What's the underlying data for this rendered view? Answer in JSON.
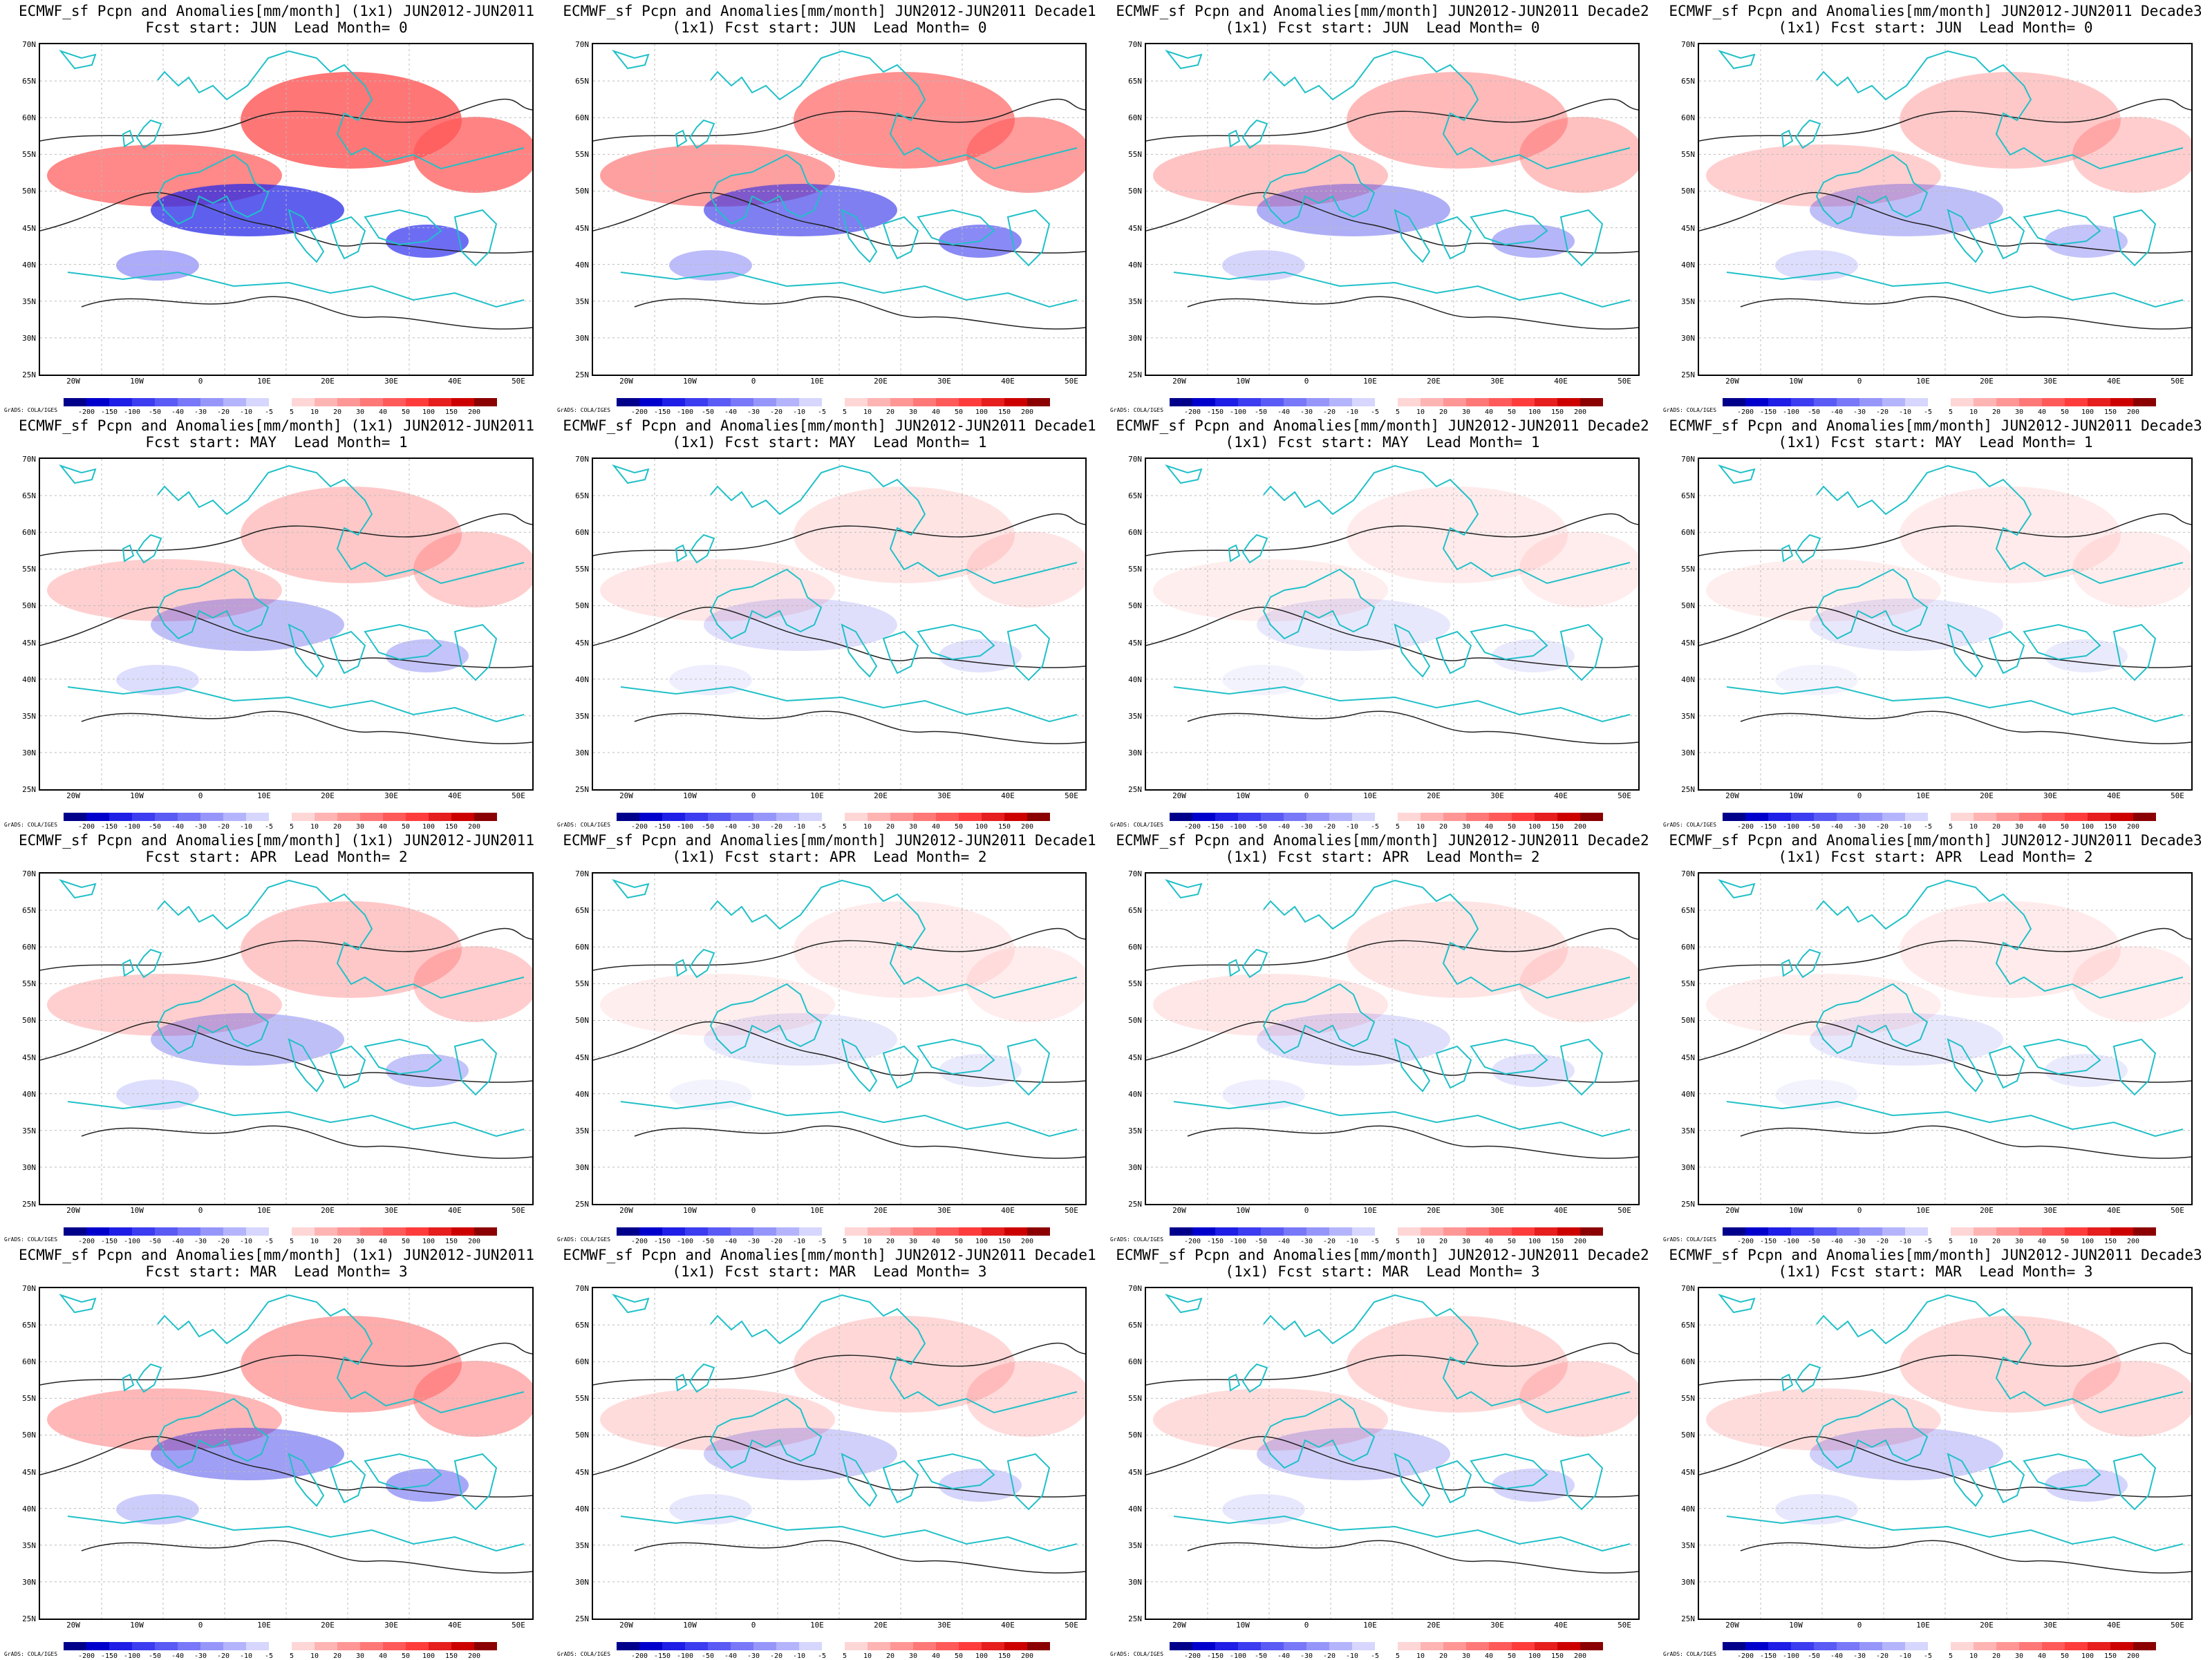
{
  "panels": [
    {
      "title": "ECMWF_sf Pcpn and Anomalies[mm/month] (1x1) JUN2012-JUN2011",
      "subtitle": "Fcst start: JUN  Lead Month= 0",
      "strength": 1.0
    },
    {
      "title": "ECMWF_sf Pcpn and Anomalies[mm/month] JUN2012-JUN2011 Decade1",
      "subtitle": "(1x1) Fcst start: JUN  Lead Month= 0",
      "strength": 0.8
    },
    {
      "title": "ECMWF_sf Pcpn and Anomalies[mm/month] JUN2012-JUN2011 Decade2",
      "subtitle": "(1x1) Fcst start: JUN  Lead Month= 0",
      "strength": 0.5
    },
    {
      "title": "ECMWF_sf Pcpn and Anomalies[mm/month] JUN2012-JUN2011 Decade3",
      "subtitle": "(1x1) Fcst start: JUN  Lead Month= 0",
      "strength": 0.4
    },
    {
      "title": "ECMWF_sf Pcpn and Anomalies[mm/month] (1x1) JUN2012-JUN2011",
      "subtitle": "Fcst start: MAY  Lead Month= 1",
      "strength": 0.4
    },
    {
      "title": "ECMWF_sf Pcpn and Anomalies[mm/month] JUN2012-JUN2011 Decade1",
      "subtitle": "(1x1) Fcst start: MAY  Lead Month= 1",
      "strength": 0.2
    },
    {
      "title": "ECMWF_sf Pcpn and Anomalies[mm/month] JUN2012-JUN2011 Decade2",
      "subtitle": "(1x1) Fcst start: MAY  Lead Month= 1",
      "strength": 0.15
    },
    {
      "title": "ECMWF_sf Pcpn and Anomalies[mm/month] JUN2012-JUN2011 Decade3",
      "subtitle": "(1x1) Fcst start: MAY  Lead Month= 1",
      "strength": 0.15
    },
    {
      "title": "ECMWF_sf Pcpn and Anomalies[mm/month] (1x1) JUN2012-JUN2011",
      "subtitle": "Fcst start: APR  Lead Month= 2",
      "strength": 0.4
    },
    {
      "title": "ECMWF_sf Pcpn and Anomalies[mm/month] JUN2012-JUN2011 Decade1",
      "subtitle": "(1x1) Fcst start: APR  Lead Month= 2",
      "strength": 0.15
    },
    {
      "title": "ECMWF_sf Pcpn and Anomalies[mm/month] JUN2012-JUN2011 Decade2",
      "subtitle": "(1x1) Fcst start: APR  Lead Month= 2",
      "strength": 0.2
    },
    {
      "title": "ECMWF_sf Pcpn and Anomalies[mm/month] JUN2012-JUN2011 Decade3",
      "subtitle": "(1x1) Fcst start: APR  Lead Month= 2",
      "strength": 0.15
    },
    {
      "title": "ECMWF_sf Pcpn and Anomalies[mm/month] (1x1) JUN2012-JUN2011",
      "subtitle": "Fcst start: MAR  Lead Month= 3",
      "strength": 0.6
    },
    {
      "title": "ECMWF_sf Pcpn and Anomalies[mm/month] JUN2012-JUN2011 Decade1",
      "subtitle": "(1x1) Fcst start: MAR  Lead Month= 3",
      "strength": 0.3
    },
    {
      "title": "ECMWF_sf Pcpn and Anomalies[mm/month] JUN2012-JUN2011 Decade2",
      "subtitle": "(1x1) Fcst start: MAR  Lead Month= 3",
      "strength": 0.3
    },
    {
      "title": "ECMWF_sf Pcpn and Anomalies[mm/month] JUN2012-JUN2011 Decade3",
      "subtitle": "(1x1) Fcst start: MAR  Lead Month= 3",
      "strength": 0.3
    }
  ],
  "lat_labels": [
    "70N",
    "65N",
    "60N",
    "55N",
    "50N",
    "45N",
    "40N",
    "35N",
    "30N",
    "25N"
  ],
  "lon_labels": [
    "20W",
    "10W",
    "0",
    "10E",
    "20E",
    "30E",
    "40E",
    "50E"
  ],
  "colorbar": {
    "values": [
      "-200",
      "-150",
      "-100",
      "-50",
      "-40",
      "-30",
      "-20",
      "-10",
      "-5",
      "5",
      "10",
      "20",
      "30",
      "40",
      "50",
      "100",
      "150",
      "200"
    ],
    "colors": [
      "#00008b",
      "#0000cd",
      "#1e1ee6",
      "#3c3cf0",
      "#5a5af5",
      "#7878f8",
      "#9696fa",
      "#b4b4fc",
      "#d6d6fe",
      "#ffffff",
      "#ffd6d6",
      "#ffb4b4",
      "#ff9696",
      "#ff7878",
      "#ff5a5a",
      "#ff3c3c",
      "#e61e1e",
      "#cd0000",
      "#8b0000"
    ]
  },
  "credit": "GrADS: COLA/IGES",
  "colors": {
    "coast": "#20c0c8",
    "contour": "#222222",
    "grid": "#bbbbbb"
  }
}
